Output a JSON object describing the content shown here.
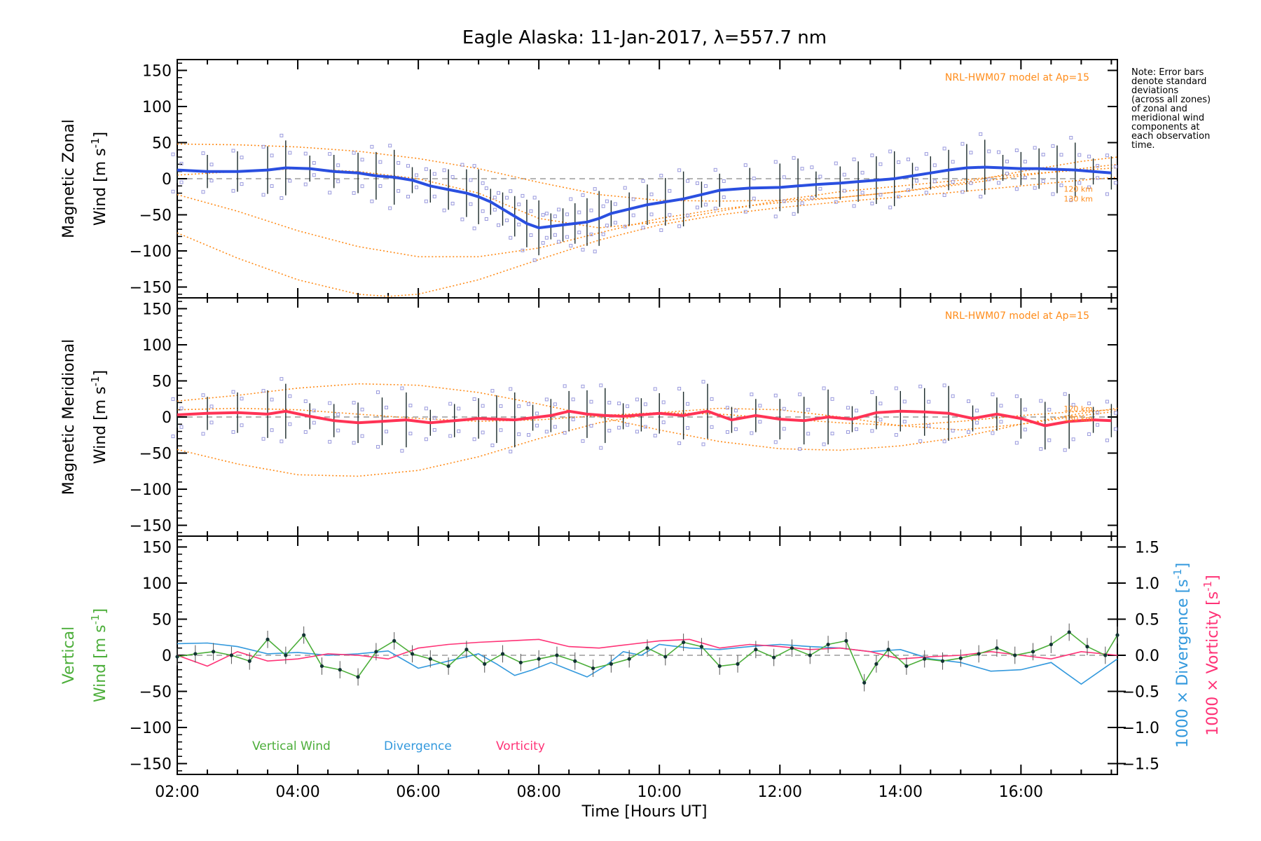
{
  "chart_data": {
    "title": "Eagle Alaska: 11-Jan-2017, λ=557.7 nm",
    "xlabel": "Time [Hours UT]",
    "xlim": [
      2.0,
      17.6
    ],
    "xticks": [
      "02:00",
      "04:00",
      "06:00",
      "08:00",
      "10:00",
      "12:00",
      "14:00",
      "16:00"
    ],
    "note": [
      "Note: Error bars",
      "denote standard",
      "deviations",
      "(across all zones)",
      "of zonal and",
      "meridional wind",
      "components at",
      "each observation",
      "time."
    ],
    "colors": {
      "zonal": "#2a4fe0",
      "meridional": "#ff3355",
      "model": "#ff8c1a",
      "vertical": "#4cae3a",
      "divergence": "#3399dd",
      "vorticity": "#ff3377",
      "zone_points": "#9999dd",
      "error_bar": "#1a2a2a"
    },
    "panels": [
      {
        "type": "line",
        "ylabel_line1": "Magnetic Zonal",
        "ylabel_line2": "Wind [m s",
        "ylabel_sup": "-1",
        "ylabel_end": "]",
        "ylim": [
          -165,
          165
        ],
        "yticks": [
          150,
          100,
          50,
          0,
          -50,
          -100,
          -150
        ],
        "model_label": "NRL-HWM07 model at Ap=15",
        "model_alt_labels": [
          "120 km",
          "130 km"
        ],
        "series": [
          {
            "x": [
              2.0,
              2.5,
              3.0,
              3.5,
              3.8,
              4.2,
              4.6,
              5.0,
              5.3,
              5.6,
              5.9,
              6.2,
              6.5,
              6.8,
              7.0,
              7.2,
              7.4,
              7.6,
              7.8,
              8.0,
              8.2,
              8.4,
              8.6,
              8.8,
              9.0,
              9.2,
              9.5,
              9.8,
              10.1,
              10.4,
              10.7,
              11.0,
              11.5,
              12.0,
              12.3,
              12.6,
              13.0,
              13.3,
              13.6,
              13.9,
              14.2,
              14.5,
              14.8,
              15.1,
              15.4,
              15.7,
              16.0,
              16.3,
              16.6,
              16.9,
              17.2,
              17.5
            ],
            "values": [
              12,
              10,
              10,
              12,
              15,
              14,
              10,
              8,
              4,
              2,
              -2,
              -10,
              -15,
              -20,
              -25,
              -32,
              -42,
              -52,
              -62,
              -68,
              -66,
              -64,
              -62,
              -60,
              -55,
              -48,
              -42,
              -36,
              -32,
              -28,
              -22,
              -16,
              -13,
              -12,
              -10,
              -8,
              -6,
              -4,
              -2,
              0,
              4,
              8,
              12,
              15,
              16,
              15,
              14,
              14,
              13,
              12,
              10,
              8
            ]
          }
        ],
        "model_curves": [
          {
            "x": [
              2.0,
              3.0,
              4.0,
              5.0,
              6.0,
              7.0,
              8.0,
              9.0,
              10.0,
              11.0,
              12.0,
              13.0,
              14.0,
              15.0,
              16.0,
              17.0,
              17.6
            ],
            "values": [
              48,
              47,
              44,
              38,
              28,
              14,
              -5,
              -22,
              -30,
              -31,
              -30,
              -26,
              -18,
              -6,
              10,
              24,
              30
            ]
          },
          {
            "x": [
              2.0,
              3.0,
              4.0,
              5.0,
              6.0,
              7.0,
              8.0,
              9.0,
              10.0,
              11.0,
              12.0,
              13.0,
              14.0,
              15.0,
              16.0,
              17.0,
              17.6
            ],
            "values": [
              -22,
              -45,
              -72,
              -94,
              -108,
              -108,
              -96,
              -75,
              -55,
              -42,
              -33,
              -26,
              -18,
              -8,
              4,
              14,
              20
            ]
          },
          {
            "x": [
              2.0,
              3.0,
              4.0,
              5.0,
              5.5,
              6.0,
              7.0,
              8.0,
              9.0,
              10.0,
              11.0,
              12.0,
              13.0,
              14.0,
              15.0,
              16.0,
              17.0,
              17.6
            ],
            "values": [
              -75,
              -110,
              -140,
              -160,
              -163,
              -160,
              -140,
              -112,
              -85,
              -64,
              -50,
              -40,
              -32,
              -25,
              -18,
              -10,
              -2,
              2
            ]
          },
          {
            "x": [
              2.0,
              3.0,
              4.0,
              5.0,
              6.0,
              7.0,
              8.0,
              9.0,
              10.0,
              11.0,
              12.0,
              13.0,
              14.0,
              15.0,
              16.0,
              17.0,
              17.6
            ],
            "values": [
              5,
              10,
              14,
              10,
              0,
              -20,
              -55,
              -68,
              -60,
              -45,
              -30,
              -18,
              -10,
              -2,
              6,
              12,
              15
            ]
          }
        ]
      },
      {
        "type": "line",
        "ylabel_line1": "Magnetic Meridional",
        "ylabel_line2": "Wind [m s",
        "ylabel_sup": "-1",
        "ylabel_end": "]",
        "ylim": [
          -165,
          165
        ],
        "yticks": [
          150,
          100,
          50,
          0,
          -50,
          -100,
          -150
        ],
        "model_label": "NRL-HWM07 model at Ap=15",
        "model_alt_labels": [
          "120 km",
          "130 km"
        ],
        "series": [
          {
            "x": [
              2.0,
              2.5,
              3.0,
              3.5,
              3.8,
              4.2,
              4.6,
              5.0,
              5.4,
              5.8,
              6.2,
              6.6,
              7.0,
              7.3,
              7.6,
              7.9,
              8.2,
              8.5,
              8.8,
              9.1,
              9.4,
              9.7,
              10.0,
              10.4,
              10.8,
              11.2,
              11.6,
              12.0,
              12.4,
              12.8,
              13.2,
              13.6,
              14.0,
              14.4,
              14.8,
              15.2,
              15.6,
              16.0,
              16.4,
              16.8,
              17.2,
              17.5
            ],
            "values": [
              3,
              5,
              6,
              4,
              8,
              1,
              -5,
              -8,
              -6,
              -4,
              -8,
              -5,
              -2,
              -3,
              -4,
              -1,
              2,
              8,
              4,
              2,
              1,
              3,
              5,
              2,
              8,
              -4,
              2,
              -3,
              -5,
              0,
              -3,
              6,
              8,
              7,
              5,
              -2,
              4,
              -2,
              -12,
              -6,
              -4,
              -5
            ]
          }
        ],
        "model_curves": [
          {
            "x": [
              2.0,
              3.0,
              4.0,
              5.0,
              6.0,
              7.0,
              8.0,
              9.0,
              10.0,
              11.0,
              12.0,
              13.0,
              14.0,
              15.0,
              16.0,
              17.0,
              17.6
            ],
            "values": [
              22,
              30,
              40,
              46,
              44,
              34,
              18,
              0,
              -18,
              -34,
              -44,
              -46,
              -40,
              -28,
              -10,
              5,
              12
            ]
          },
          {
            "x": [
              2.0,
              3.0,
              4.0,
              5.0,
              6.0,
              7.0,
              8.0,
              9.0,
              10.0,
              11.0,
              12.0,
              13.0,
              14.0,
              15.0,
              16.0,
              17.0,
              17.6
            ],
            "values": [
              -45,
              -65,
              -80,
              -82,
              -74,
              -55,
              -30,
              -8,
              6,
              12,
              10,
              0,
              -12,
              -18,
              -10,
              2,
              8
            ]
          },
          {
            "x": [
              2.0,
              3.0,
              4.0,
              5.0,
              6.0,
              7.0,
              8.0,
              9.0,
              10.0,
              11.0,
              12.0,
              13.0,
              14.0,
              15.0,
              16.0,
              17.0,
              17.6
            ],
            "values": [
              10,
              12,
              10,
              4,
              -2,
              -6,
              -4,
              2,
              6,
              4,
              -2,
              -8,
              -12,
              -6,
              2,
              8,
              10
            ]
          }
        ]
      },
      {
        "type": "line",
        "ylabel_green_line1": "Vertical",
        "ylabel_green_line2": "Wind [m s",
        "ylabel_sup": "-1",
        "ylabel_end": "]",
        "ylim": [
          -165,
          165
        ],
        "yticks": [
          150,
          100,
          50,
          0,
          -50,
          -100,
          -150
        ],
        "y2lim": [
          -1.65,
          1.65
        ],
        "y2ticks": [
          "1.5",
          "1.0",
          "0.5",
          "0.0",
          "−0.5",
          "−1.0",
          "−1.5"
        ],
        "y2label_blue": "1000 × Divergence [s",
        "y2label_pink": "1000 × Vorticity [s",
        "legend": [
          "Vertical Wind",
          "Divergence",
          "Vorticity"
        ],
        "series": [
          {
            "name": "Vertical Wind",
            "x": [
              2.0,
              2.3,
              2.6,
              2.9,
              3.2,
              3.5,
              3.8,
              4.1,
              4.4,
              4.7,
              5.0,
              5.3,
              5.6,
              5.9,
              6.2,
              6.5,
              6.8,
              7.1,
              7.4,
              7.7,
              8.0,
              8.3,
              8.6,
              8.9,
              9.2,
              9.5,
              9.8,
              10.1,
              10.4,
              10.7,
              11.0,
              11.3,
              11.6,
              11.9,
              12.2,
              12.5,
              12.8,
              13.1,
              13.4,
              13.6,
              13.8,
              14.1,
              14.4,
              14.7,
              15.0,
              15.3,
              15.6,
              15.9,
              16.2,
              16.5,
              16.8,
              17.1,
              17.4,
              17.6
            ],
            "values": [
              -2,
              2,
              5,
              0,
              -8,
              22,
              0,
              28,
              -15,
              -20,
              -30,
              5,
              20,
              2,
              -5,
              -15,
              8,
              -12,
              2,
              -10,
              -5,
              0,
              -8,
              -18,
              -12,
              -5,
              10,
              -2,
              18,
              12,
              -15,
              -12,
              8,
              -3,
              10,
              0,
              15,
              20,
              -38,
              -12,
              8,
              -15,
              -5,
              -8,
              -4,
              2,
              10,
              0,
              5,
              15,
              32,
              12,
              0,
              28
            ]
          },
          {
            "name": "Divergence",
            "x": [
              2.0,
              2.5,
              3.0,
              3.5,
              4.0,
              4.5,
              5.0,
              5.5,
              6.0,
              6.5,
              7.0,
              7.3,
              7.6,
              7.9,
              8.2,
              8.5,
              8.8,
              9.1,
              9.4,
              9.7,
              10.0,
              10.5,
              11.0,
              11.5,
              12.0,
              12.5,
              13.0,
              13.5,
              14.0,
              14.5,
              15.0,
              15.5,
              16.0,
              16.5,
              17.0,
              17.6
            ],
            "values": [
              0.16,
              0.17,
              0.12,
              0.02,
              0.04,
              0.0,
              0.02,
              0.06,
              -0.18,
              -0.08,
              0.02,
              -0.12,
              -0.28,
              -0.2,
              -0.1,
              -0.2,
              -0.3,
              -0.15,
              0.05,
              0.0,
              0.15,
              0.1,
              0.08,
              0.12,
              0.15,
              0.12,
              0.1,
              0.05,
              0.08,
              -0.05,
              -0.1,
              -0.22,
              -0.2,
              -0.1,
              -0.4,
              -0.05
            ]
          },
          {
            "name": "Vorticity",
            "x": [
              2.0,
              2.5,
              3.0,
              3.5,
              4.0,
              4.5,
              5.0,
              5.5,
              6.0,
              6.5,
              7.0,
              7.5,
              8.0,
              8.5,
              9.0,
              9.5,
              10.0,
              10.5,
              11.0,
              11.5,
              12.0,
              12.5,
              13.0,
              13.5,
              14.0,
              14.5,
              15.0,
              15.5,
              16.0,
              16.5,
              17.0,
              17.6
            ],
            "values": [
              0.0,
              -0.15,
              0.05,
              -0.08,
              -0.05,
              0.02,
              0.0,
              -0.05,
              0.1,
              0.15,
              0.18,
              0.2,
              0.22,
              0.12,
              0.1,
              0.15,
              0.2,
              0.22,
              0.1,
              0.15,
              0.12,
              0.08,
              0.1,
              0.05,
              -0.05,
              -0.02,
              0.0,
              0.05,
              0.0,
              -0.05,
              0.05,
              0.0
            ]
          }
        ]
      }
    ]
  }
}
